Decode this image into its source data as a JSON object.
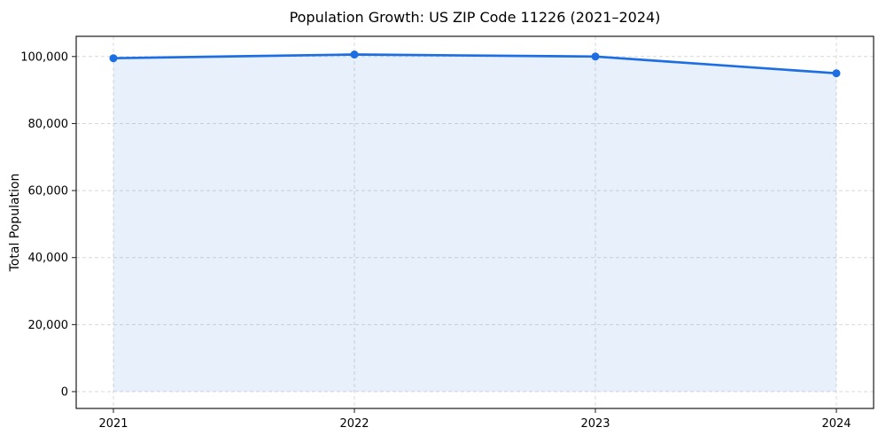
{
  "chart_data": {
    "type": "line",
    "title": "Population Growth: US ZIP Code 11226 (2021–2024)",
    "xlabel": "",
    "ylabel": "Total Population",
    "x": [
      "2021",
      "2022",
      "2023",
      "2024"
    ],
    "series": [
      {
        "name": "Total Population",
        "values": [
          99500,
          100600,
          100000,
          95000
        ]
      }
    ],
    "y_ticks": [
      0,
      20000,
      40000,
      60000,
      80000,
      100000
    ],
    "y_tick_labels": [
      "0",
      "20,000",
      "40,000",
      "60,000",
      "80,000",
      "100,000"
    ],
    "ylim": [
      -5000,
      106000
    ],
    "grid": true,
    "grid_style": "dashed",
    "legend_position": "none",
    "marker": "circle",
    "area_fill": true,
    "colors": {
      "line": "#1d6ee3",
      "marker": "#1d6ee3",
      "area_fill": "rgba(29,110,227,0.10)",
      "grid": "#d8d8d8",
      "spine": "#1a1a1a",
      "text": "#000000",
      "background": "#ffffff"
    }
  }
}
